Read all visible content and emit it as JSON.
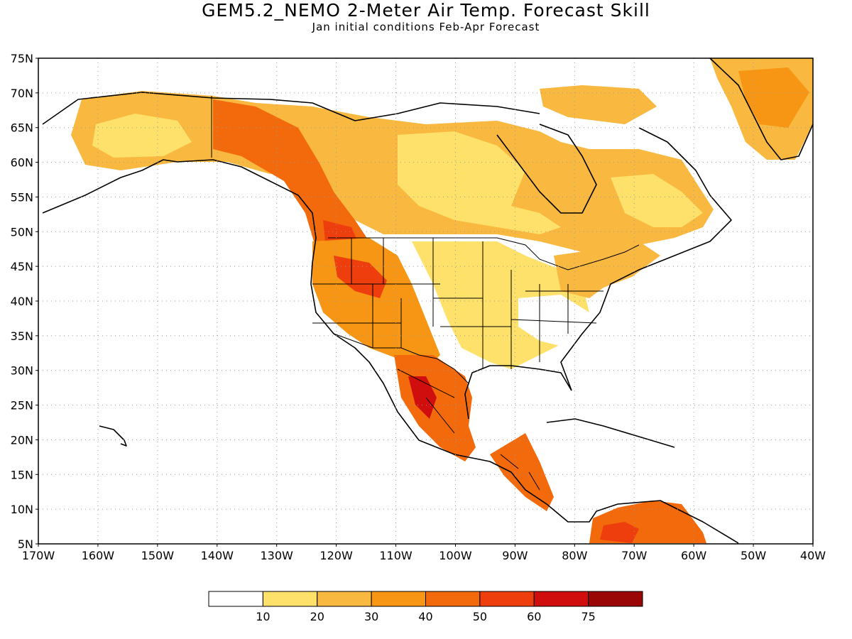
{
  "title": "GEM5.2_NEMO 2-Meter Air Temp. Forecast Skill",
  "subtitle": "Jan initial conditions  Feb-Apr Forecast",
  "map": {
    "lat_labels": [
      "75N",
      "70N",
      "65N",
      "60N",
      "55N",
      "50N",
      "45N",
      "40N",
      "35N",
      "30N",
      "25N",
      "20N",
      "15N",
      "10N",
      "5N"
    ],
    "lon_labels": [
      "170W",
      "160W",
      "150W",
      "140W",
      "130W",
      "120W",
      "110W",
      "100W",
      "90W",
      "80W",
      "70W",
      "60W",
      "50W",
      "40W"
    ],
    "grid": "dotted"
  },
  "colorbar": {
    "colors": [
      "#ffffff",
      "#fde16a",
      "#f9b83f",
      "#f69614",
      "#f36a0c",
      "#ef3e0d",
      "#d10e0e",
      "#9a0506"
    ],
    "labels": [
      "10",
      "20",
      "30",
      "40",
      "50",
      "60",
      "75"
    ]
  }
}
